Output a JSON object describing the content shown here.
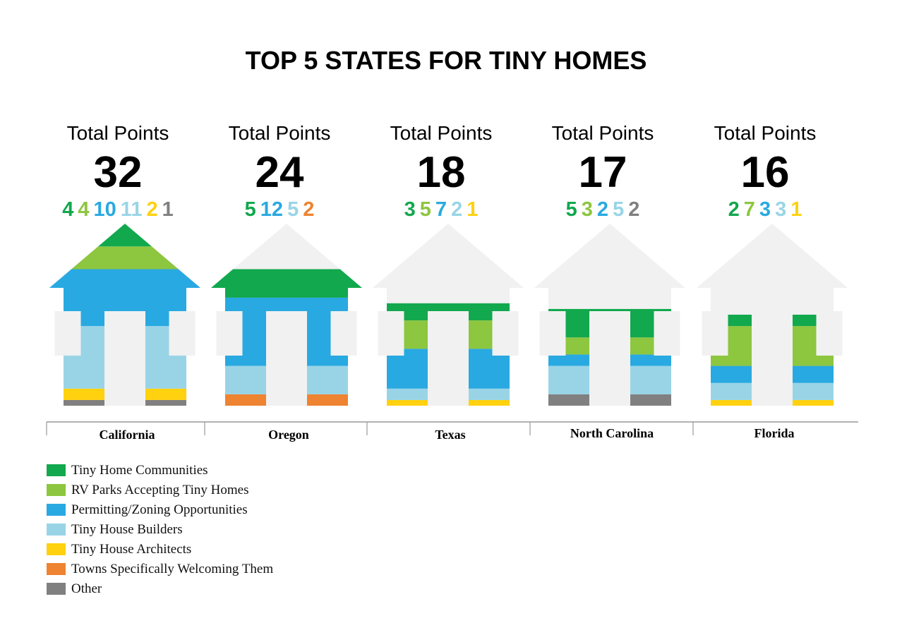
{
  "chart_data": {
    "type": "bar",
    "title": "TOP 5 STATES FOR TINY HOMES",
    "total_label": "Total Points",
    "categories": [
      "California",
      "Oregon",
      "Texas",
      "North Carolina",
      "Florida"
    ],
    "totals": [
      32,
      24,
      18,
      17,
      16
    ],
    "series": [
      {
        "name": "Tiny Home Communities",
        "color": "#12a84e",
        "values": [
          4,
          5,
          3,
          5,
          2
        ]
      },
      {
        "name": "RV Parks Accepting Tiny Homes",
        "color": "#8dc63f",
        "values": [
          4,
          0,
          5,
          3,
          7
        ]
      },
      {
        "name": "Permitting/Zoning Opportunities",
        "color": "#29a9e1",
        "values": [
          10,
          12,
          7,
          2,
          3
        ]
      },
      {
        "name": "Tiny House Builders",
        "color": "#99d4e6",
        "values": [
          11,
          5,
          2,
          5,
          3
        ]
      },
      {
        "name": "Tiny House Architects",
        "color": "#ffd10f",
        "values": [
          2,
          0,
          1,
          0,
          1
        ]
      },
      {
        "name": "Towns Specifically Welcoming Them",
        "color": "#ee8331",
        "values": [
          0,
          2,
          0,
          0,
          0
        ]
      },
      {
        "name": "Other",
        "color": "#808080",
        "values": [
          1,
          0,
          0,
          2,
          0
        ]
      }
    ],
    "house_color": "#f0f1f0",
    "legend_position": "bottom-left"
  }
}
